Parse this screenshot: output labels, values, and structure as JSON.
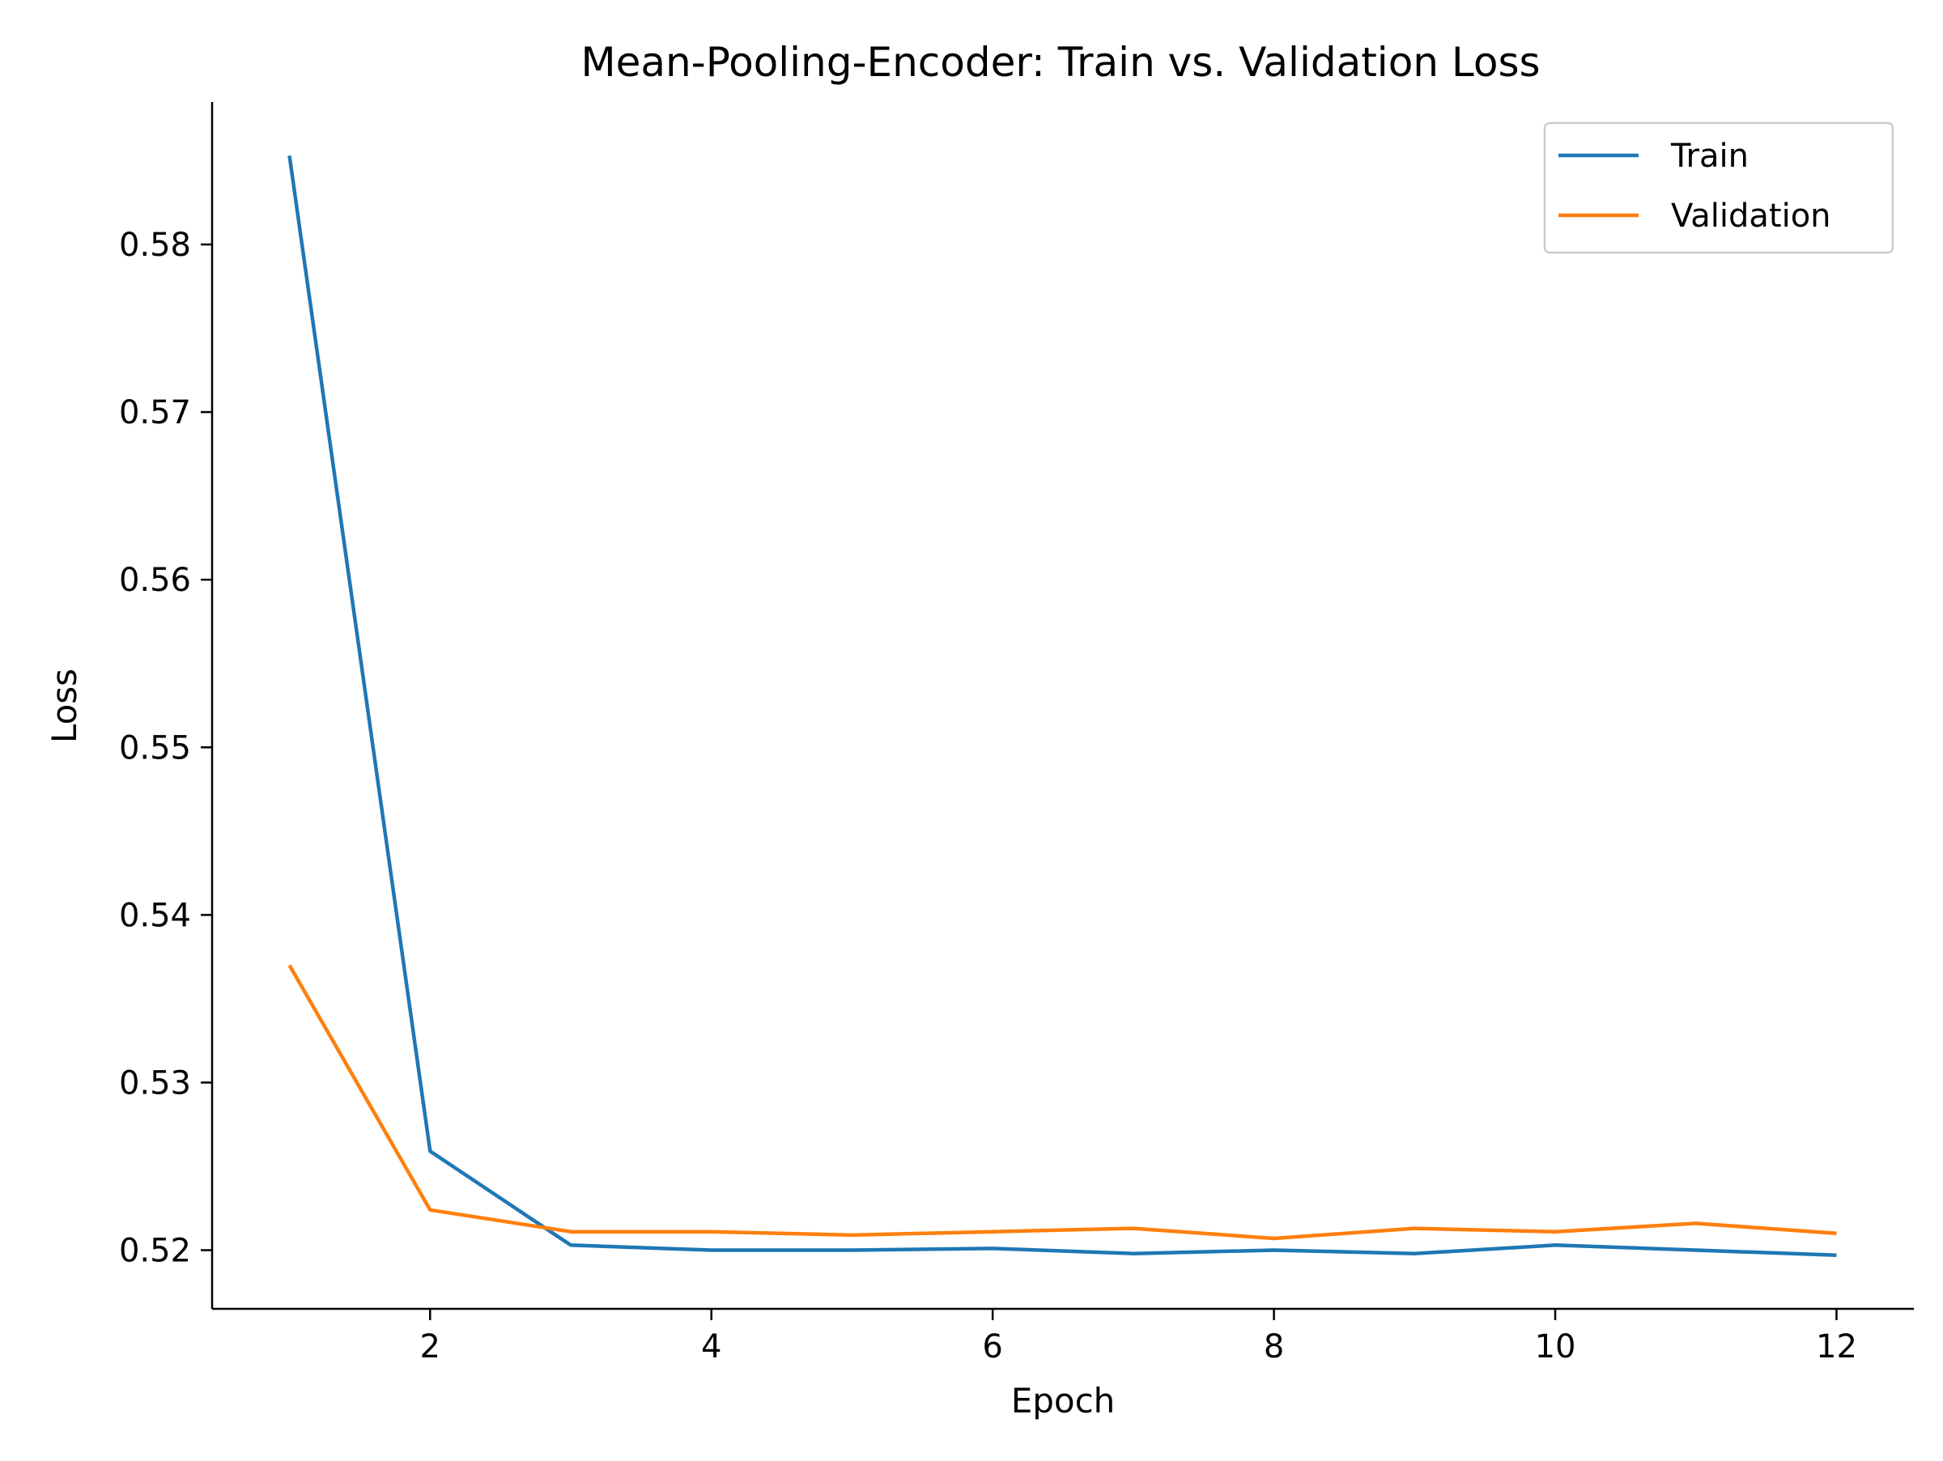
{
  "chart_data": {
    "type": "line",
    "title": "Mean-Pooling-Encoder: Train vs. Validation Loss",
    "xlabel": "Epoch",
    "ylabel": "Loss",
    "x": [
      1,
      2,
      3,
      4,
      5,
      6,
      7,
      8,
      9,
      10,
      11,
      12
    ],
    "xlim": [
      0.45,
      12.55
    ],
    "ylim": [
      0.5165,
      0.5885
    ],
    "xticks": [
      2,
      4,
      6,
      8,
      10,
      12
    ],
    "yticks": [
      0.52,
      0.53,
      0.54,
      0.55,
      0.56,
      0.57,
      0.58
    ],
    "xtick_labels": [
      "2",
      "4",
      "6",
      "8",
      "10",
      "12"
    ],
    "ytick_labels": [
      "0.52",
      "0.53",
      "0.54",
      "0.55",
      "0.56",
      "0.57",
      "0.58"
    ],
    "grid": false,
    "legend_position": "top-right",
    "series": [
      {
        "name": "Train",
        "color": "#1f77b4",
        "values": [
          0.5853,
          0.5259,
          0.5203,
          0.52,
          0.52,
          0.5201,
          0.5198,
          0.52,
          0.5198,
          0.5203,
          0.52,
          0.5197
        ]
      },
      {
        "name": "Validation",
        "color": "#ff7f0e",
        "values": [
          0.537,
          0.5224,
          0.5211,
          0.5211,
          0.5209,
          0.5211,
          0.5213,
          0.5207,
          0.5213,
          0.5211,
          0.5216,
          0.521
        ]
      }
    ]
  }
}
